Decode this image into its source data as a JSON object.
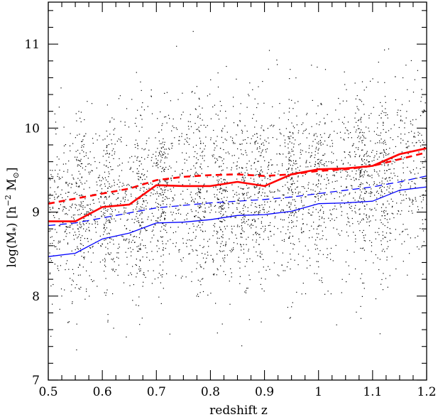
{
  "chart_data": {
    "type": "scatter",
    "xlabel": "redshift z",
    "ylabel_main": "log(M",
    "ylabel_sub": "*",
    "ylabel_bracket_open": ") [h",
    "ylabel_sup": "−2",
    "ylabel_m": " M",
    "ylabel_sun": "⊙",
    "ylabel_close": "]",
    "xlim": [
      0.5,
      1.2
    ],
    "ylim": [
      7,
      11.5
    ],
    "x_ticks": [
      "0.5",
      "0.6",
      "0.7",
      "0.8",
      "0.9",
      "1",
      "1.1",
      "1.2"
    ],
    "x_tick_values": [
      0.5,
      0.6,
      0.7,
      0.8,
      0.9,
      1.0,
      1.1,
      1.2
    ],
    "y_ticks": [
      "7",
      "8",
      "9",
      "10",
      "11"
    ],
    "y_tick_values": [
      7,
      8,
      9,
      10,
      11
    ],
    "scatter_note_points": 3500,
    "series": [
      {
        "style": "solid-thick",
        "color": "#ff0000",
        "x": [
          0.5,
          0.55,
          0.6,
          0.65,
          0.7,
          0.75,
          0.8,
          0.85,
          0.9,
          0.95,
          1.0,
          1.05,
          1.1,
          1.15,
          1.2
        ],
        "y": [
          8.89,
          8.89,
          9.06,
          9.09,
          9.32,
          9.31,
          9.31,
          9.36,
          9.31,
          9.45,
          9.51,
          9.52,
          9.55,
          9.69,
          9.76
        ]
      },
      {
        "style": "dashed-thick",
        "color": "#ff0000",
        "x": [
          0.5,
          0.55,
          0.6,
          0.65,
          0.7,
          0.75,
          0.8,
          0.85,
          0.9,
          0.95,
          1.0,
          1.05,
          1.1,
          1.15,
          1.2
        ],
        "y": [
          9.1,
          9.16,
          9.22,
          9.28,
          9.38,
          9.42,
          9.44,
          9.45,
          9.43,
          9.45,
          9.49,
          9.51,
          9.55,
          9.63,
          9.71
        ]
      },
      {
        "style": "solid-thin",
        "color": "#0000ff",
        "x": [
          0.5,
          0.55,
          0.6,
          0.65,
          0.7,
          0.75,
          0.8,
          0.85,
          0.9,
          0.95,
          1.0,
          1.05,
          1.1,
          1.15,
          1.2
        ],
        "y": [
          8.47,
          8.51,
          8.68,
          8.75,
          8.87,
          8.88,
          8.91,
          8.96,
          8.97,
          9.01,
          9.1,
          9.11,
          9.13,
          9.26,
          9.3
        ]
      },
      {
        "style": "dashed-thin",
        "color": "#0000ff",
        "x": [
          0.5,
          0.55,
          0.6,
          0.65,
          0.7,
          0.75,
          0.8,
          0.85,
          0.9,
          0.95,
          1.0,
          1.05,
          1.1,
          1.15,
          1.2
        ],
        "y": [
          8.84,
          8.87,
          8.93,
          8.99,
          9.05,
          9.08,
          9.11,
          9.13,
          9.15,
          9.18,
          9.22,
          9.26,
          9.3,
          9.36,
          9.43
        ]
      }
    ]
  }
}
